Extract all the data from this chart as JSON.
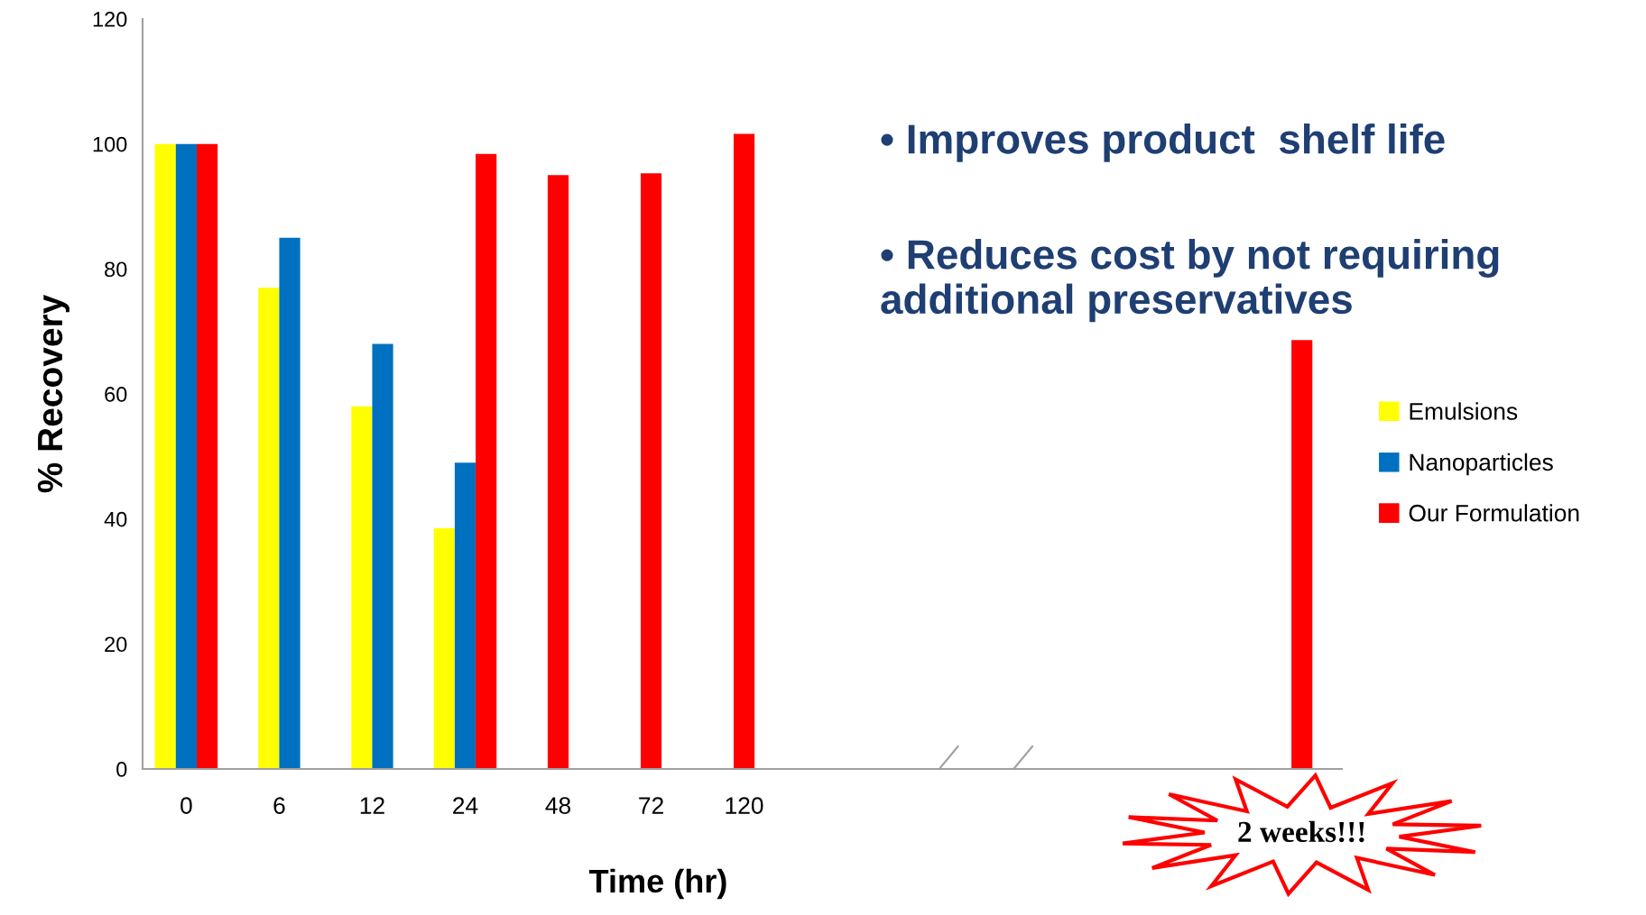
{
  "chart_data": {
    "type": "bar",
    "xlabel": "Time (hr)",
    "ylabel": "% Recovery",
    "categories": [
      "0",
      "6",
      "12",
      "24",
      "48",
      "72",
      "120",
      null,
      null,
      null,
      null,
      null,
      "2 weeks!!!"
    ],
    "series": [
      {
        "name": "Emulsions",
        "color": "#ffff00",
        "values": [
          100,
          77,
          58,
          38.5,
          null,
          null,
          null,
          null,
          null,
          null,
          null,
          null,
          null
        ]
      },
      {
        "name": "Nanoparticles",
        "color": "#0070c0",
        "values": [
          100,
          85,
          68,
          49,
          null,
          null,
          null,
          null,
          null,
          null,
          null,
          null,
          null
        ]
      },
      {
        "name": "Our Formulation",
        "color": "#ff0000",
        "values": [
          100,
          null,
          null,
          98.4,
          95,
          95.3,
          101.6,
          null,
          null,
          null,
          null,
          null,
          68.6
        ]
      }
    ],
    "ylim": [
      0,
      120
    ],
    "yticks": [
      0,
      20,
      40,
      60,
      80,
      100,
      120
    ],
    "grid": false,
    "legend": "right",
    "annotations": [
      "• Improves product  shelf life",
      "• Reduces cost by not requiring\nadditional preservatives"
    ]
  }
}
